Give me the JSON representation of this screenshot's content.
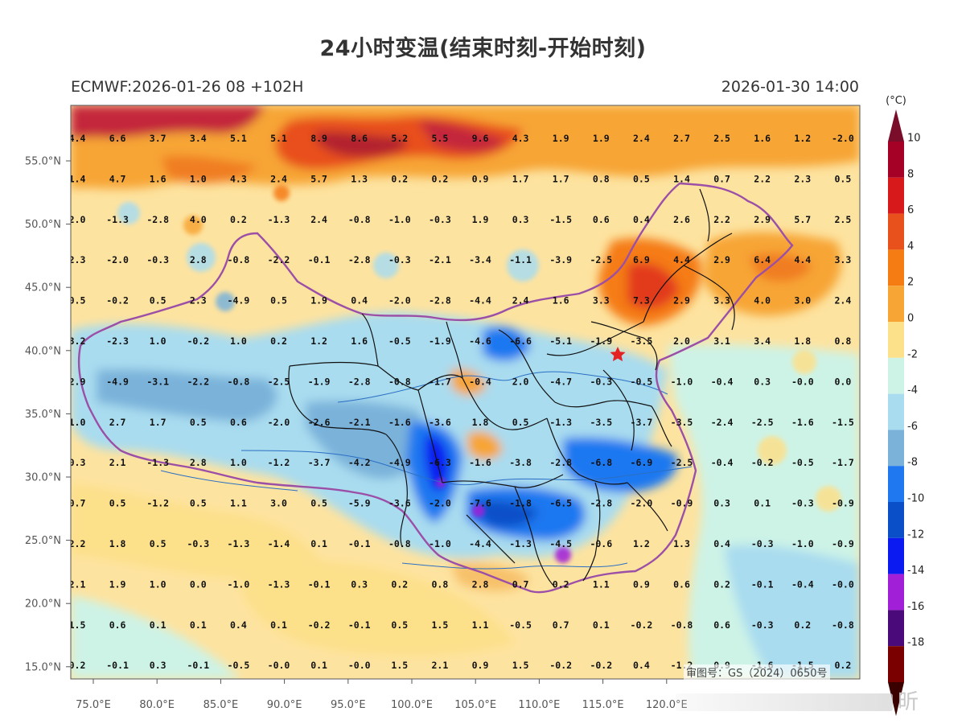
{
  "header": {
    "title": "24小时变温(结束时刻-开始时刻)",
    "model_run": "ECMWF:2026-01-26 08 +102H",
    "valid_time": "2026-01-30 14:00"
  },
  "axes": {
    "lon_ticks": [
      "75.0°E",
      "80.0°E",
      "85.0°E",
      "90.0°E",
      "95.0°E",
      "100.0°E",
      "105.0°E",
      "110.0°E",
      "115.0°E",
      "120.0°E"
    ],
    "lat_ticks": [
      "55.0°N",
      "50.0°N",
      "45.0°N",
      "40.0°N",
      "35.0°N",
      "30.0°N",
      "25.0°N",
      "20.0°N",
      "15.0°N"
    ]
  },
  "colorbar": {
    "unit": "(°C)",
    "labels": [
      "10",
      "8",
      "6",
      "4",
      "2",
      "0",
      "-2",
      "-4",
      "-6",
      "-8",
      "-10",
      "-12",
      "-14",
      "-16",
      "-18"
    ],
    "colors": [
      "#a50026",
      "#d7191c",
      "#e8501c",
      "#f57c12",
      "#f7a535",
      "#fde08a",
      "#cdf3e6",
      "#a9dcef",
      "#7ab2da",
      "#1f78f0",
      "#0a4fc8",
      "#0a1af0",
      "#a21fd8",
      "#4b0a7a",
      "#7a0000"
    ],
    "top_color": "#7a0d2a",
    "bottom_color": "#3a0000"
  },
  "grid_values": [
    [
      "4.4",
      "6.6",
      "3.7",
      "3.4",
      "5.1",
      "5.1",
      "8.9",
      "8.6",
      "5.2",
      "5.5",
      "9.6",
      "4.3",
      "1.9",
      "1.9",
      "2.4",
      "2.7",
      "2.5",
      "1.6",
      "1.2",
      "-2.0"
    ],
    [
      "1.4",
      "4.7",
      "1.6",
      "1.0",
      "4.3",
      "2.4",
      "5.7",
      "1.3",
      "0.2",
      "0.2",
      "0.9",
      "1.7",
      "1.7",
      "0.8",
      "0.5",
      "1.4",
      "0.7",
      "2.2",
      "2.3",
      "0.5"
    ],
    [
      "2.0",
      "-1.3",
      "-2.8",
      "4.0",
      "0.2",
      "-1.3",
      "2.4",
      "-0.8",
      "-1.0",
      "-0.3",
      "1.9",
      "0.3",
      "-1.5",
      "0.6",
      "0.4",
      "2.6",
      "2.2",
      "2.9",
      "5.7",
      "2.5"
    ],
    [
      "2.3",
      "-2.0",
      "-0.3",
      "2.8",
      "-0.8",
      "-2.2",
      "-0.1",
      "-2.8",
      "-0.3",
      "-2.1",
      "-3.4",
      "-1.1",
      "-3.9",
      "-2.5",
      "6.9",
      "4.4",
      "2.9",
      "6.4",
      "4.4",
      "3.3"
    ],
    [
      "0.5",
      "-0.2",
      "0.5",
      "2.3",
      "-4.9",
      "0.5",
      "1.9",
      "0.4",
      "-2.0",
      "-2.8",
      "-4.4",
      "2.4",
      "1.6",
      "3.3",
      "7.3",
      "2.9",
      "3.3",
      "4.0",
      "3.0",
      "2.4"
    ],
    [
      "3.2",
      "-2.3",
      "1.0",
      "-0.2",
      "1.0",
      "0.2",
      "1.2",
      "1.6",
      "-0.5",
      "-1.9",
      "-4.6",
      "-6.6",
      "-5.1",
      "-1.9",
      "-3.5",
      "2.0",
      "3.1",
      "3.4",
      "1.8",
      "0.8"
    ],
    [
      "2.9",
      "-4.9",
      "-3.1",
      "-2.2",
      "-0.8",
      "-2.5",
      "-1.9",
      "-2.8",
      "-0.8",
      "-1.7",
      "-0.4",
      "2.0",
      "-4.7",
      "-0.3",
      "-0.5",
      "-1.0",
      "-0.4",
      "0.3",
      "-0.0",
      "0.0"
    ],
    [
      "1.0",
      "2.7",
      "1.7",
      "0.5",
      "0.6",
      "-2.0",
      "-2.6",
      "-2.1",
      "-1.6",
      "-3.6",
      "1.8",
      "0.5",
      "-1.3",
      "-3.5",
      "-3.7",
      "-3.5",
      "-2.4",
      "-2.5",
      "-1.6",
      "-1.5"
    ],
    [
      "0.3",
      "2.1",
      "-1.3",
      "2.8",
      "1.0",
      "-1.2",
      "-3.7",
      "-4.2",
      "-4.9",
      "-6.3",
      "-1.6",
      "-3.8",
      "-2.8",
      "-6.8",
      "-6.9",
      "-2.5",
      "-0.4",
      "-0.2",
      "-0.5",
      "-1.7"
    ],
    [
      "0.7",
      "0.5",
      "-1.2",
      "0.5",
      "1.1",
      "3.0",
      "0.5",
      "-5.9",
      "-3.6",
      "-2.0",
      "-7.6",
      "-1.8",
      "-6.5",
      "-2.8",
      "-2.0",
      "-0.9",
      "0.3",
      "0.1",
      "-0.3",
      "-0.9"
    ],
    [
      "2.2",
      "1.8",
      "0.5",
      "-0.3",
      "-1.3",
      "-1.4",
      "0.1",
      "-0.1",
      "-0.8",
      "-1.0",
      "-4.4",
      "-1.3",
      "-4.5",
      "-0.6",
      "1.2",
      "1.3",
      "0.4",
      "-0.3",
      "-1.0",
      "-0.9"
    ],
    [
      "2.1",
      "1.9",
      "1.0",
      "0.0",
      "-1.0",
      "-1.3",
      "-0.1",
      "0.3",
      "0.2",
      "0.8",
      "2.8",
      "0.7",
      "0.2",
      "1.1",
      "0.9",
      "0.6",
      "0.2",
      "-0.1",
      "-0.4",
      "-0.0"
    ],
    [
      "1.5",
      "0.6",
      "0.1",
      "0.1",
      "0.4",
      "0.1",
      "-0.2",
      "-0.1",
      "0.5",
      "1.5",
      "1.1",
      "-0.5",
      "0.7",
      "0.1",
      "-0.2",
      "-0.8",
      "0.6",
      "-0.3",
      "0.2",
      "-0.8"
    ],
    [
      "0.2",
      "-0.1",
      "0.3",
      "-0.1",
      "-0.5",
      "-0.0",
      "0.1",
      "-0.0",
      "1.5",
      "2.1",
      "0.9",
      "1.5",
      "-0.2",
      "-0.2",
      "0.4",
      "-1.2",
      "0.9",
      "-1.6",
      "-1.5",
      "0.2"
    ]
  ],
  "footer": {
    "approval_number": "审图号：GS（2024）0650号",
    "watermark": "昕"
  }
}
